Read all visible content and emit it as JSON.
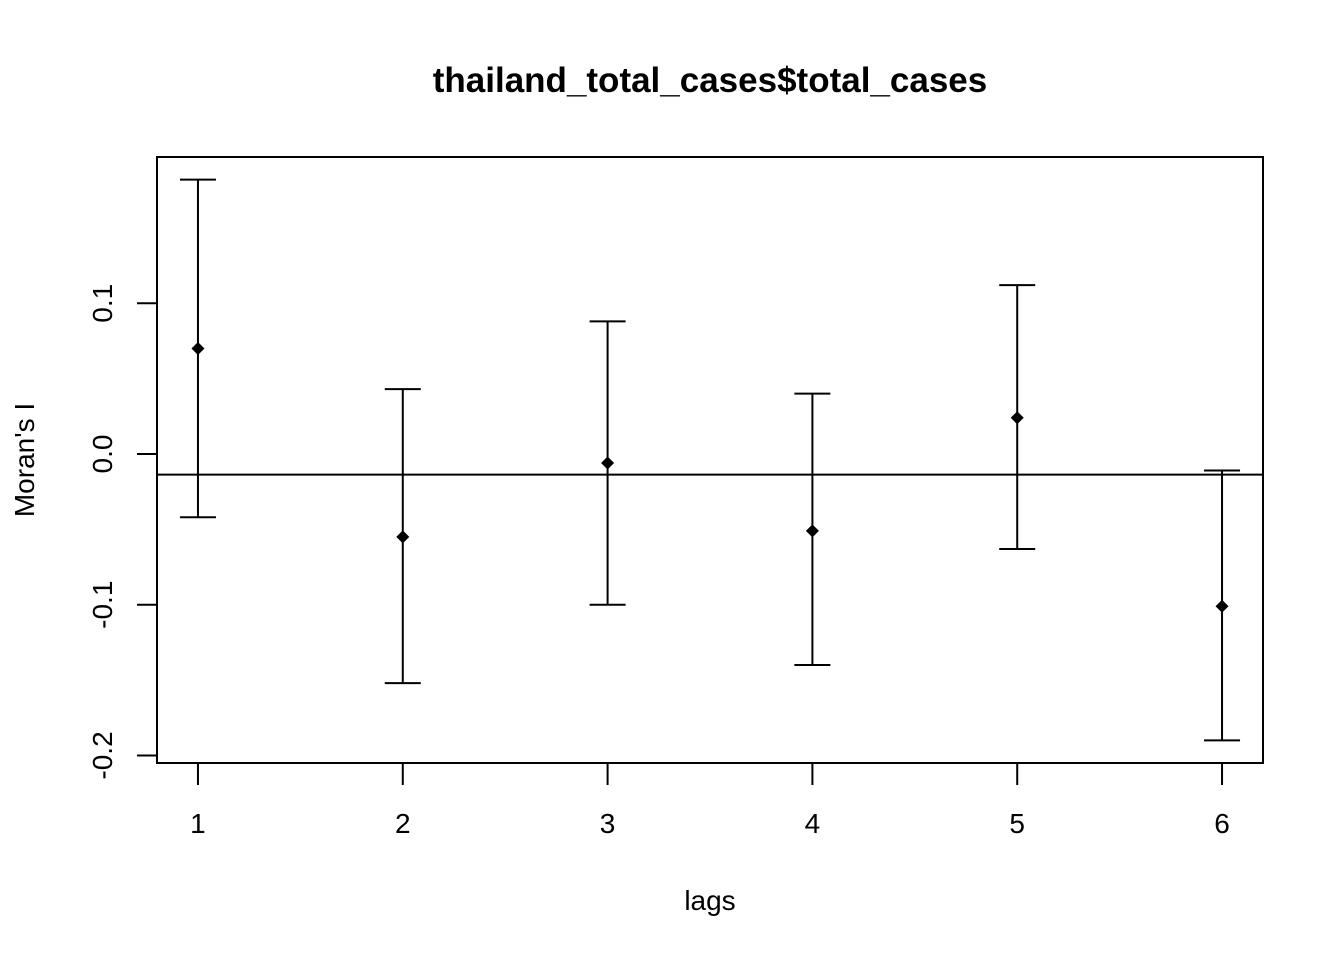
{
  "chart_data": {
    "type": "errorbar",
    "title": "thailand_total_cases$total_cases",
    "xlabel": "lags",
    "ylabel": "Moran's  I",
    "x": [
      1,
      2,
      3,
      4,
      5,
      6
    ],
    "x_tick_labels": [
      "1",
      "2",
      "3",
      "4",
      "5",
      "6"
    ],
    "y_tick_values": [
      -0.2,
      -0.1,
      0.0,
      0.1
    ],
    "y_tick_labels": [
      "-0.2",
      "-0.1",
      "0.0",
      "0.1"
    ],
    "series": [
      {
        "values": [
          0.07,
          -0.055,
          -0.006,
          -0.051,
          0.024,
          -0.101
        ],
        "lower": [
          -0.042,
          -0.152,
          -0.1,
          -0.14,
          -0.063,
          -0.19
        ],
        "upper": [
          0.182,
          0.043,
          0.088,
          0.04,
          0.112,
          -0.011
        ]
      }
    ],
    "reference_line": -0.0137,
    "xlim": [
      0.8,
      6.2
    ],
    "ylim": [
      -0.205,
      0.197
    ],
    "grid": false,
    "marker": "diamond",
    "color": "#000000"
  }
}
